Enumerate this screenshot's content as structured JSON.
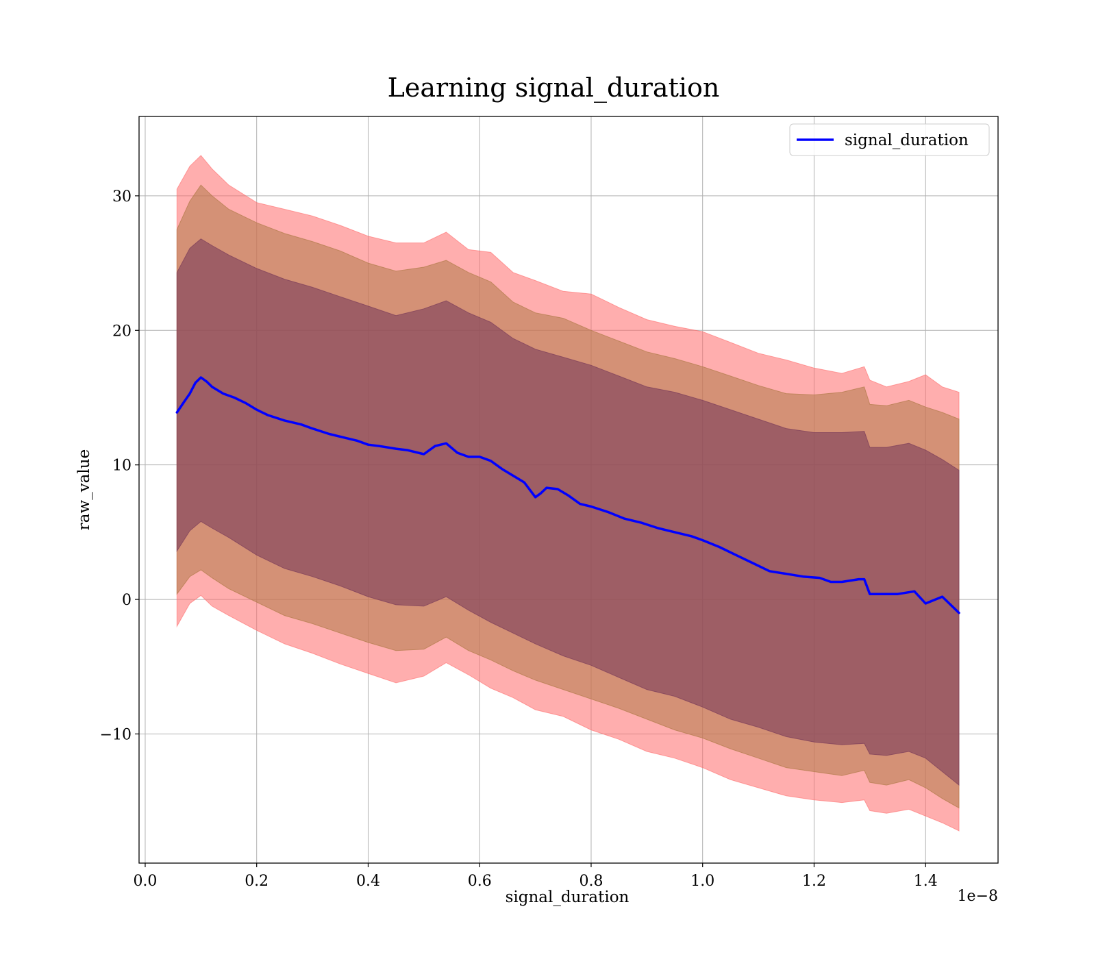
{
  "chart_data": {
    "type": "line",
    "title": "Learning signal_duration",
    "xlabel": "signal_duration",
    "ylabel": "raw_value",
    "x_offset_text": "1e−8",
    "xlim": [
      -0.011,
      1.53
    ],
    "ylim": [
      -19.6,
      35.9
    ],
    "xticks": [
      0.0,
      0.2,
      0.4,
      0.6,
      0.8,
      1.0,
      1.2,
      1.4
    ],
    "xtick_labels": [
      "0.0",
      "0.2",
      "0.4",
      "0.6",
      "0.8",
      "1.0",
      "1.2",
      "1.4"
    ],
    "yticks": [
      -10,
      0,
      10,
      20,
      30
    ],
    "ytick_labels": [
      "−10",
      "0",
      "10",
      "20",
      "30"
    ],
    "grid": true,
    "legend_position": "upper right",
    "colors": {
      "line": "#0000ff",
      "band_outer": "#ff6b6b",
      "band_middle": "#b07a48",
      "band_inner": "#7a3c5a"
    },
    "series": [
      {
        "name": "signal_duration",
        "x": [
          0.057,
          0.07,
          0.08,
          0.09,
          0.1,
          0.11,
          0.12,
          0.14,
          0.16,
          0.18,
          0.2,
          0.22,
          0.25,
          0.28,
          0.3,
          0.33,
          0.36,
          0.38,
          0.4,
          0.42,
          0.45,
          0.47,
          0.5,
          0.52,
          0.54,
          0.56,
          0.58,
          0.6,
          0.62,
          0.64,
          0.66,
          0.68,
          0.7,
          0.71,
          0.72,
          0.74,
          0.76,
          0.78,
          0.8,
          0.83,
          0.86,
          0.89,
          0.92,
          0.95,
          0.98,
          1.0,
          1.03,
          1.06,
          1.09,
          1.12,
          1.15,
          1.18,
          1.21,
          1.23,
          1.25,
          1.28,
          1.29,
          1.3,
          1.32,
          1.35,
          1.38,
          1.4,
          1.43,
          1.46
        ],
        "y": [
          13.9,
          14.7,
          15.3,
          16.1,
          16.5,
          16.2,
          15.8,
          15.3,
          15.0,
          14.6,
          14.1,
          13.7,
          13.3,
          13.0,
          12.7,
          12.3,
          12.0,
          11.8,
          11.5,
          11.4,
          11.2,
          11.1,
          10.8,
          11.4,
          11.6,
          10.9,
          10.6,
          10.6,
          10.3,
          9.7,
          9.2,
          8.7,
          7.6,
          7.9,
          8.3,
          8.2,
          7.7,
          7.1,
          6.9,
          6.5,
          6.0,
          5.7,
          5.3,
          5.0,
          4.7,
          4.4,
          3.9,
          3.3,
          2.7,
          2.1,
          1.9,
          1.7,
          1.6,
          1.3,
          1.3,
          1.5,
          1.5,
          0.4,
          0.4,
          0.4,
          0.6,
          -0.3,
          0.2,
          -1.0
        ]
      }
    ],
    "bands": {
      "x": [
        0.057,
        0.08,
        0.1,
        0.12,
        0.15,
        0.2,
        0.25,
        0.3,
        0.35,
        0.4,
        0.45,
        0.5,
        0.54,
        0.58,
        0.62,
        0.66,
        0.7,
        0.75,
        0.8,
        0.85,
        0.9,
        0.95,
        1.0,
        1.05,
        1.1,
        1.15,
        1.2,
        1.25,
        1.29,
        1.3,
        1.33,
        1.37,
        1.4,
        1.43,
        1.46
      ],
      "outer_upper": [
        30.5,
        32.2,
        33.0,
        32.0,
        30.8,
        29.5,
        29.0,
        28.5,
        27.8,
        27.0,
        26.5,
        26.5,
        27.3,
        26.0,
        25.8,
        24.3,
        23.7,
        22.9,
        22.7,
        21.7,
        20.8,
        20.3,
        19.9,
        19.1,
        18.3,
        17.8,
        17.2,
        16.8,
        17.3,
        16.3,
        15.8,
        16.2,
        16.7,
        15.8,
        15.4
      ],
      "outer_lower": [
        -2.0,
        -0.3,
        0.3,
        -0.5,
        -1.2,
        -2.3,
        -3.3,
        -4.0,
        -4.8,
        -5.5,
        -6.2,
        -5.7,
        -4.7,
        -5.6,
        -6.6,
        -7.3,
        -8.2,
        -8.7,
        -9.7,
        -10.4,
        -11.3,
        -11.8,
        -12.5,
        -13.4,
        -14.0,
        -14.6,
        -14.9,
        -15.1,
        -14.9,
        -15.7,
        -15.9,
        -15.6,
        -16.1,
        -16.6,
        -17.2
      ],
      "middle_upper": [
        27.5,
        29.6,
        30.8,
        30.0,
        29.0,
        28.0,
        27.2,
        26.6,
        25.9,
        25.0,
        24.4,
        24.7,
        25.2,
        24.3,
        23.6,
        22.1,
        21.3,
        20.9,
        20.0,
        19.2,
        18.4,
        17.9,
        17.3,
        16.6,
        15.9,
        15.3,
        15.2,
        15.4,
        15.8,
        14.5,
        14.4,
        14.8,
        14.3,
        13.9,
        13.4
      ],
      "middle_lower": [
        0.4,
        1.7,
        2.2,
        1.6,
        0.8,
        -0.2,
        -1.2,
        -1.8,
        -2.5,
        -3.2,
        -3.8,
        -3.7,
        -2.8,
        -3.8,
        -4.5,
        -5.3,
        -6.0,
        -6.7,
        -7.4,
        -8.1,
        -8.9,
        -9.7,
        -10.3,
        -11.1,
        -11.8,
        -12.5,
        -12.8,
        -13.1,
        -12.7,
        -13.6,
        -13.8,
        -13.4,
        -14.0,
        -14.8,
        -15.5
      ],
      "inner_upper": [
        24.3,
        26.1,
        26.8,
        26.3,
        25.6,
        24.6,
        23.8,
        23.2,
        22.5,
        21.8,
        21.1,
        21.6,
        22.2,
        21.3,
        20.6,
        19.4,
        18.6,
        18.0,
        17.4,
        16.6,
        15.8,
        15.4,
        14.8,
        14.1,
        13.4,
        12.7,
        12.4,
        12.4,
        12.5,
        11.3,
        11.3,
        11.6,
        11.1,
        10.4,
        9.6
      ],
      "inner_lower": [
        3.6,
        5.1,
        5.8,
        5.3,
        4.6,
        3.3,
        2.3,
        1.7,
        1.0,
        0.2,
        -0.4,
        -0.5,
        0.2,
        -0.8,
        -1.7,
        -2.5,
        -3.3,
        -4.2,
        -4.9,
        -5.8,
        -6.7,
        -7.2,
        -8.0,
        -8.9,
        -9.5,
        -10.2,
        -10.6,
        -10.8,
        -10.7,
        -11.5,
        -11.6,
        -11.3,
        -11.8,
        -12.8,
        -13.8
      ]
    }
  }
}
